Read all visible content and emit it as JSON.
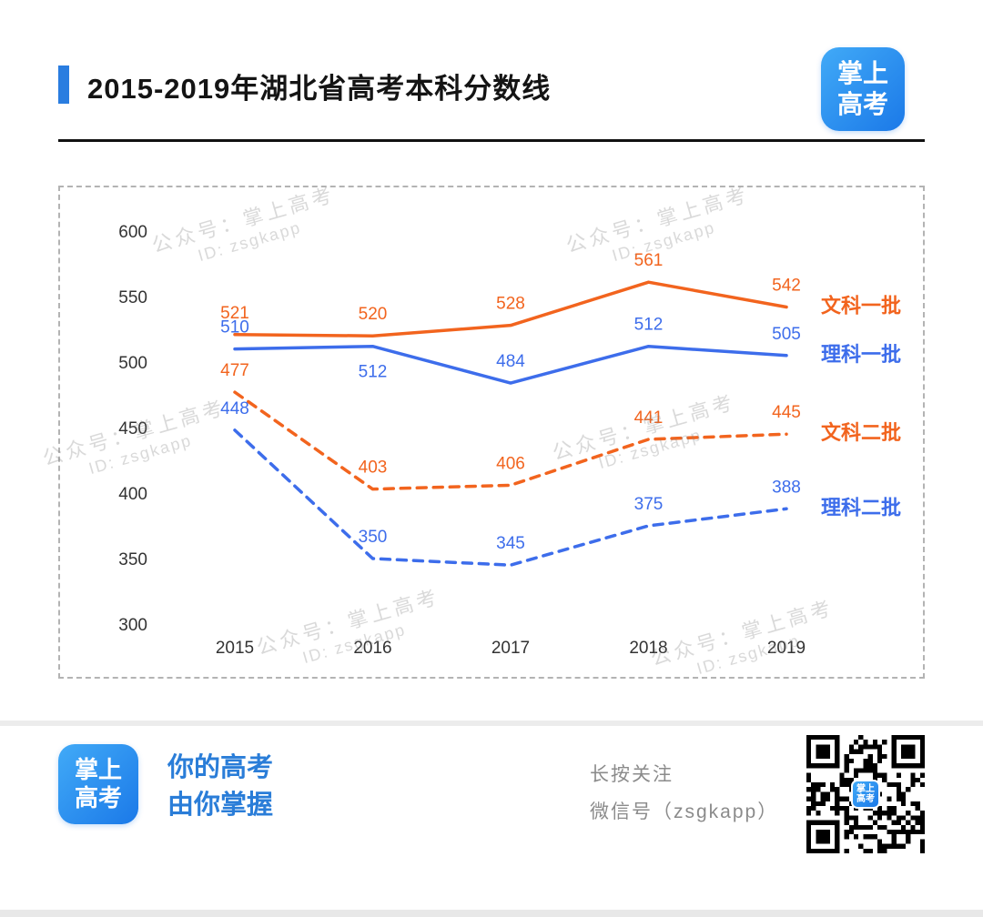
{
  "header": {
    "accent_color": "#2a7de0",
    "title": "2015-2019年湖北省高考本科分数线",
    "logo": {
      "line1": "掌上",
      "line2": "高考"
    }
  },
  "watermark": {
    "line1": "公众号：掌上高考",
    "line2": "ID: zsgkapp"
  },
  "chart_data": {
    "type": "line",
    "categories": [
      "2015",
      "2016",
      "2017",
      "2018",
      "2019"
    ],
    "series": [
      {
        "name": "文科一批",
        "values": [
          521,
          520,
          528,
          561,
          542
        ],
        "color": "#f2641e",
        "dashed": false
      },
      {
        "name": "理科一批",
        "values": [
          510,
          512,
          484,
          512,
          505
        ],
        "color": "#3d6deb",
        "dashed": false
      },
      {
        "name": "文科二批",
        "values": [
          477,
          403,
          406,
          441,
          445
        ],
        "color": "#f2641e",
        "dashed": true
      },
      {
        "name": "理科二批",
        "values": [
          448,
          350,
          345,
          375,
          388
        ],
        "color": "#3d6deb",
        "dashed": true
      }
    ],
    "title": "2015-2019年湖北省高考本科分数线",
    "xlabel": "",
    "ylabel": "",
    "ylim": [
      300,
      600
    ],
    "yticks": [
      300,
      350,
      400,
      450,
      500,
      550,
      600
    ],
    "grid": false,
    "legend_position": "right-of-line-end"
  },
  "footer": {
    "logo": {
      "line1": "掌上",
      "line2": "高考"
    },
    "slogan_line1": "你的高考",
    "slogan_line2": "由你掌握",
    "follow_text": "长按关注",
    "wechat_text": "微信号（zsgkapp）"
  }
}
